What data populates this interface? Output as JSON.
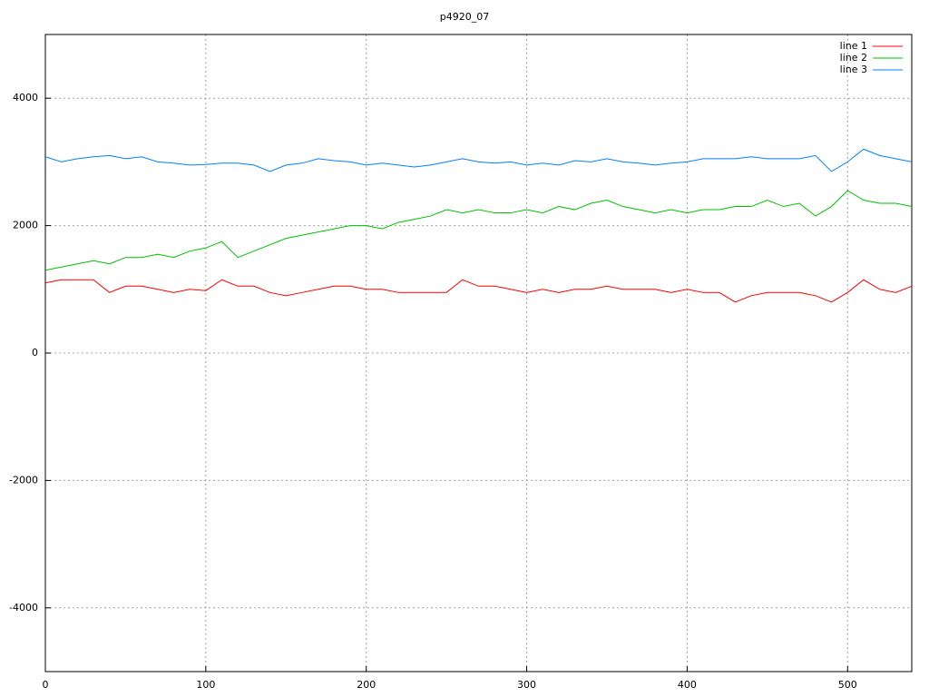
{
  "chart_data": {
    "type": "line",
    "title": "p4920_07",
    "x": [
      0,
      10,
      20,
      30,
      40,
      50,
      60,
      70,
      80,
      90,
      100,
      110,
      120,
      130,
      140,
      150,
      160,
      170,
      180,
      190,
      200,
      210,
      220,
      230,
      240,
      250,
      260,
      270,
      280,
      290,
      300,
      310,
      320,
      330,
      340,
      350,
      360,
      370,
      380,
      390,
      400,
      410,
      420,
      430,
      440,
      450,
      460,
      470,
      480,
      490,
      500,
      510,
      520,
      530,
      540
    ],
    "series": [
      {
        "name": "line 1",
        "color": "#ff0000",
        "values": [
          1100,
          1150,
          1150,
          1150,
          950,
          1050,
          1050,
          1000,
          950,
          1000,
          980,
          1150,
          1050,
          1050,
          950,
          900,
          950,
          1000,
          1050,
          1050,
          1000,
          1000,
          950,
          950,
          950,
          950,
          1150,
          1050,
          1050,
          1000,
          950,
          1000,
          950,
          1000,
          1000,
          1050,
          1000,
          1000,
          1000,
          950,
          1000,
          950,
          950,
          800,
          900,
          950,
          950,
          950,
          900,
          800,
          950,
          1150,
          1000,
          950,
          1050
        ]
      },
      {
        "name": "line 2",
        "color": "#00c000",
        "values": [
          1300,
          1350,
          1400,
          1450,
          1400,
          1500,
          1500,
          1550,
          1500,
          1600,
          1650,
          1750,
          1500,
          1600,
          1700,
          1800,
          1850,
          1900,
          1950,
          2000,
          2000,
          1950,
          2050,
          2100,
          2150,
          2250,
          2200,
          2250,
          2200,
          2200,
          2250,
          2200,
          2300,
          2250,
          2350,
          2400,
          2300,
          2250,
          2200,
          2250,
          2200,
          2250,
          2250,
          2300,
          2300,
          2400,
          2300,
          2350,
          2150,
          2300,
          2550,
          2400,
          2350,
          2350,
          2300
        ]
      },
      {
        "name": "line 3",
        "color": "#0080ff",
        "values": [
          3080,
          3000,
          3050,
          3080,
          3100,
          3050,
          3080,
          3000,
          2980,
          2950,
          2960,
          2980,
          2980,
          2950,
          2850,
          2950,
          2980,
          3050,
          3020,
          3000,
          2950,
          2980,
          2950,
          2920,
          2950,
          3000,
          3050,
          3000,
          2980,
          3000,
          2950,
          2980,
          2950,
          3020,
          3000,
          3050,
          3000,
          2980,
          2950,
          2980,
          3000,
          3050,
          3050,
          3050,
          3080,
          3050,
          3050,
          3050,
          3100,
          2850,
          3000,
          3200,
          3100,
          3050,
          3000
        ]
      }
    ],
    "xlim": [
      0,
      540
    ],
    "ylim": [
      -5000,
      5000
    ],
    "xticks": [
      0,
      100,
      200,
      300,
      400,
      500
    ],
    "yticks": [
      -4000,
      -2000,
      0,
      2000,
      4000
    ],
    "grid": true,
    "legend": "top-right"
  }
}
